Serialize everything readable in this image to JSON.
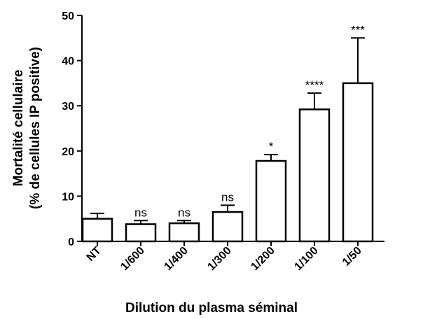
{
  "chart_data": {
    "type": "bar",
    "y_label": [
      "Mortalité cellulaire",
      "(% de cellules IP positive)"
    ],
    "x_label": "Dilution du plasma séminal",
    "categories": [
      "NT",
      "1/600",
      "1/400",
      "1/300",
      "1/200",
      "1/100",
      "1/50"
    ],
    "values": [
      5,
      3.8,
      4,
      6.5,
      17.8,
      29.2,
      35
    ],
    "errors": [
      1.2,
      0.8,
      0.6,
      1.5,
      1.4,
      3.6,
      10
    ],
    "annotations": [
      null,
      "ns",
      "ns",
      "ns",
      "*",
      "****",
      "***"
    ],
    "color": "#ffffff",
    "ylim": [
      0,
      50
    ],
    "yticks": [
      0,
      10,
      20,
      30,
      40,
      50
    ]
  }
}
